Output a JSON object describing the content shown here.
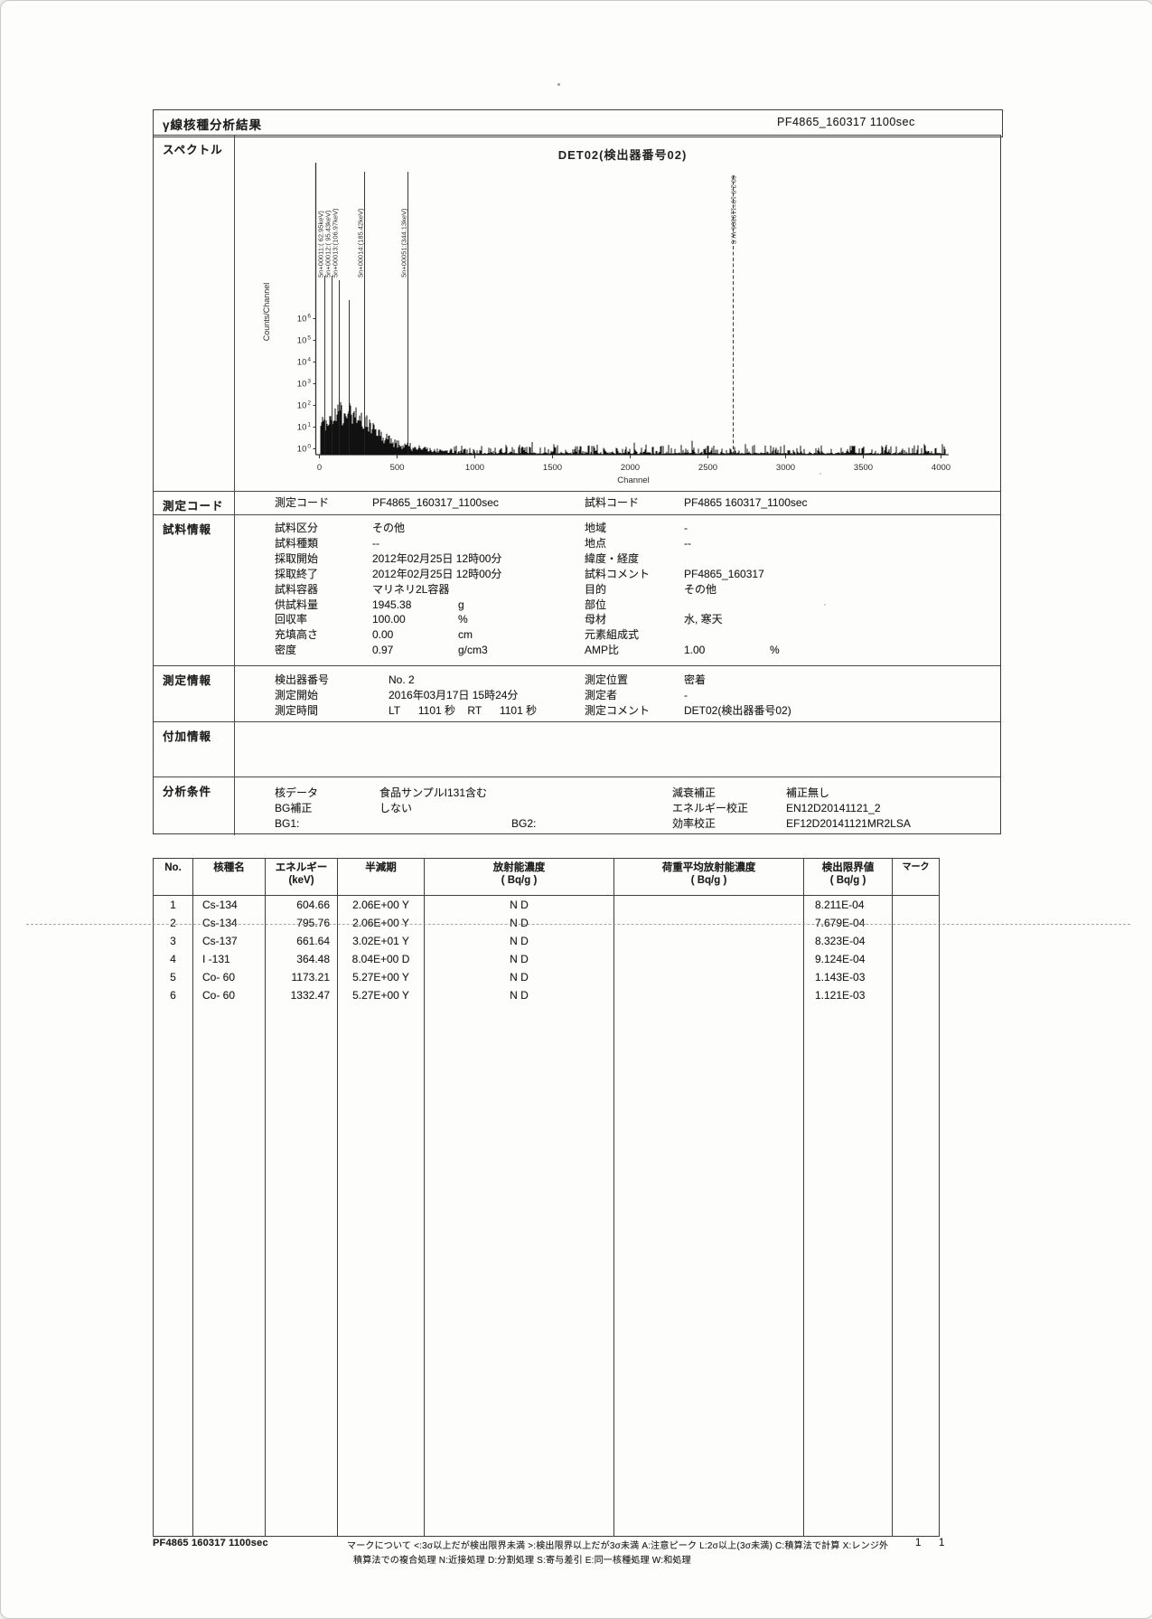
{
  "header": {
    "title": "γ線核種分析結果",
    "code": "PF4865_160317 1100sec"
  },
  "sections": {
    "spectrum": "スペクトル",
    "measure_code": "測定コード",
    "sample_info": "試料情報",
    "measure_info": "測定情報",
    "additional_info": "付加情報",
    "analysis_cond": "分析条件"
  },
  "chart_data": {
    "type": "line",
    "title": "DET02(検出器番号02)",
    "xlabel": "Channel",
    "ylabel": "Counts/Channel",
    "xlim": [
      0,
      4096
    ],
    "x_ticks": [
      0,
      500,
      1000,
      1500,
      2000,
      2500,
      3000,
      3500,
      4000
    ],
    "yscale": "log",
    "y_tick_exponents": [
      6,
      5,
      4,
      3,
      2,
      1,
      0
    ],
    "grid": false,
    "peak_markers": [
      {
        "channel": 35,
        "label": "5n+00011:( 62.95keV)",
        "dashed": false
      },
      {
        "channel": 81,
        "label": "5n+00012:( 95.43keV)",
        "dashed": false
      },
      {
        "channel": 128,
        "label": "5n+00013:(106.97keV)",
        "dashed": false
      },
      {
        "channel": 192,
        "label": "",
        "dashed": false
      },
      {
        "channel": 291,
        "label": "5n+00014:(185.42keV)",
        "dashed": false
      },
      {
        "channel": 570,
        "label": "5n+00051:(344.13keV)",
        "dashed": false
      },
      {
        "channel": 2663,
        "label": "60:2.9 19=119306-W.S",
        "dashed": true
      }
    ],
    "noise_profile": {
      "description": "low-energy continuum hump peaking near channel 160 at ~10^2 counts, decaying to sparse ~10^0-10^1 spikes across remaining channels",
      "hump_peak_channel": 160,
      "hump_max_counts_log10": 2.3,
      "tail_counts_log10": 0.5
    }
  },
  "measure_code_row": {
    "label1": "測定コード",
    "value1": "PF4865_160317_1100sec",
    "label2": "試料コード",
    "value2": "PF4865 160317_1100sec"
  },
  "sample_info": {
    "left": [
      {
        "l": "試料区分",
        "v": "その他",
        "u": ""
      },
      {
        "l": "試料種類",
        "v": "--",
        "u": ""
      },
      {
        "l": "採取開始",
        "v": "2012年02月25日 12時00分",
        "u": ""
      },
      {
        "l": "採取終了",
        "v": "2012年02月25日 12時00分",
        "u": ""
      },
      {
        "l": "試料容器",
        "v": "マリネリ2L容器",
        "u": ""
      },
      {
        "l": "供試料量",
        "v": "1945.38",
        "u": "g"
      },
      {
        "l": "回収率",
        "v": "100.00",
        "u": "%"
      },
      {
        "l": "充填高さ",
        "v": "0.00",
        "u": "cm"
      },
      {
        "l": "密度",
        "v": "0.97",
        "u": "g/cm3"
      }
    ],
    "right": [
      {
        "l": "地域",
        "v": "-",
        "u": ""
      },
      {
        "l": "地点",
        "v": "--",
        "u": ""
      },
      {
        "l": "緯度・経度",
        "v": "",
        "u": ""
      },
      {
        "l": "試料コメント",
        "v": "PF4865_160317",
        "u": ""
      },
      {
        "l": "目的",
        "v": "その他",
        "u": ""
      },
      {
        "l": "部位",
        "v": "",
        "u": ""
      },
      {
        "l": "母材",
        "v": "水, 寒天",
        "u": ""
      },
      {
        "l": "元素組成式",
        "v": "",
        "u": ""
      },
      {
        "l": "AMP比",
        "v": "1.00",
        "u": "%"
      }
    ]
  },
  "measure_info": {
    "left": [
      {
        "l": "検出器番号",
        "v": "No. 2",
        "u": ""
      },
      {
        "l": "測定開始",
        "v": "2016年03月17日 15時24分",
        "u": ""
      },
      {
        "l": "測定時間",
        "v": "LT      1101 秒    RT      1101 秒",
        "u": ""
      }
    ],
    "right": [
      {
        "l": "測定位置",
        "v": "密着",
        "u": ""
      },
      {
        "l": "測定者",
        "v": "-",
        "u": ""
      },
      {
        "l": "測定コメント",
        "v": "DET02(検出器番号02)",
        "u": ""
      }
    ]
  },
  "analysis_cond": {
    "left": [
      {
        "l": "核データ",
        "v": "食品サンプルI131含む",
        "u": ""
      },
      {
        "l": "BG補正",
        "v": "しない",
        "u": ""
      },
      {
        "l": "BG1:",
        "v": "",
        "u": "",
        "l2": "BG2:"
      }
    ],
    "right": [
      {
        "l": "減衰補正",
        "v": "補正無し",
        "u": ""
      },
      {
        "l": "エネルギー校正",
        "v": "EN12D20141121_2",
        "u": ""
      },
      {
        "l": "効率校正",
        "v": "EF12D20141121MR2LSA",
        "u": ""
      }
    ]
  },
  "results_table": {
    "headers": [
      {
        "t": "No.",
        "s": ""
      },
      {
        "t": "核種名",
        "s": ""
      },
      {
        "t": "エネルギー",
        "s": "(keV)"
      },
      {
        "t": "半減期",
        "s": ""
      },
      {
        "t": "放射能濃度",
        "s": "( Bq/g )"
      },
      {
        "t": "荷重平均放射能濃度",
        "s": "( Bq/g )"
      },
      {
        "t": "検出限界値",
        "s": "( Bq/g )"
      },
      {
        "t": "マーク",
        "s": ""
      }
    ],
    "rows": [
      [
        "1",
        "Cs-134",
        "604.66",
        "2.06E+00 Y",
        "N D",
        "",
        "8.211E-04",
        ""
      ],
      [
        "2",
        "Cs-134",
        "795.76",
        "2.06E+00 Y",
        "N D",
        "",
        "7.679E-04",
        ""
      ],
      [
        "3",
        "Cs-137",
        "661.64",
        "3.02E+01 Y",
        "N D",
        "",
        "8.323E-04",
        ""
      ],
      [
        "4",
        "I -131",
        "364.48",
        "8.04E+00 D",
        "N D",
        "",
        "9.124E-04",
        ""
      ],
      [
        "5",
        "Co- 60",
        "1173.21",
        "5.27E+00 Y",
        "N D",
        "",
        "1.143E-03",
        ""
      ],
      [
        "6",
        "Co- 60",
        "1332.47",
        "5.27E+00 Y",
        "N D",
        "",
        "1.121E-03",
        ""
      ]
    ]
  },
  "footer": {
    "code": "PF4865 160317 1100sec",
    "line1": "マークについて  <:3σ以上だが検出限界未満  >:検出限界以上だが3σ未満  A:注意ピーク  L:2σ以上(3σ未満)  C:積算法で計算  X:レンジ外",
    "line2": "積算法での複合処理  N:近接処理  D:分割処理  S:寄与差引  E:同一核種処理  W:和処理",
    "page_left": "1",
    "page_right": "1"
  }
}
